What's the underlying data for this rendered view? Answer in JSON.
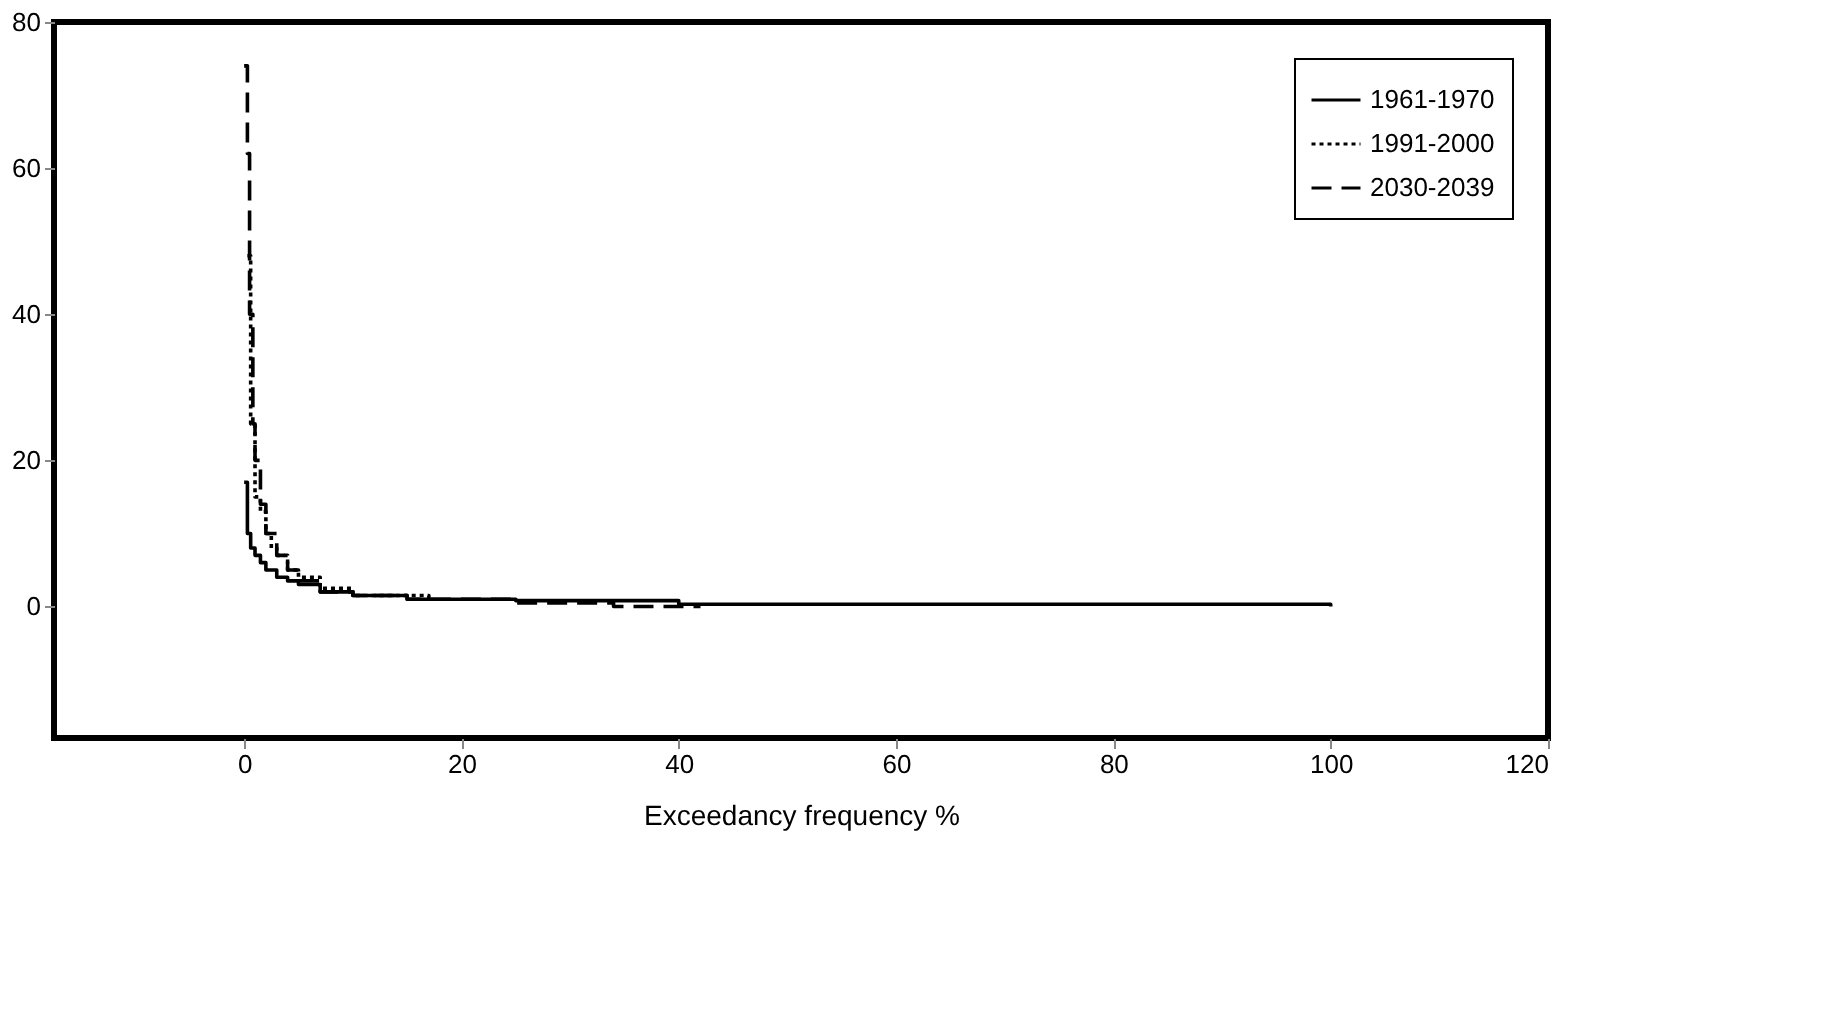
{
  "chart_data": {
    "type": "step",
    "xlabel": "Exceedancy frequency %",
    "xlim": [
      -17.5,
      120
    ],
    "xticks": [
      0,
      20,
      40,
      60,
      80,
      100,
      120
    ],
    "ylim": [
      -18,
      80
    ],
    "yticks": [
      0,
      20,
      40,
      60,
      80
    ],
    "grid": false,
    "legend": "top right",
    "series": [
      {
        "name": "1961-1970",
        "color": "#000000",
        "line_style": "solid",
        "x": [
          0,
          0.3,
          0.6,
          1,
          1.5,
          2,
          3,
          4,
          5,
          7,
          10,
          15,
          25,
          40,
          100
        ],
        "values": [
          17,
          10,
          8,
          7,
          6,
          5,
          4,
          3.5,
          3,
          2,
          1.5,
          1,
          0.8,
          0.3,
          0
        ]
      },
      {
        "name": "1991-2000",
        "color": "#000000",
        "line_style": "dotted",
        "x": [
          0.3,
          0.6,
          1,
          1.5,
          2,
          2.5,
          3,
          4,
          5,
          7,
          10,
          17
        ],
        "values": [
          48,
          25,
          15,
          13,
          10,
          8,
          7,
          5,
          4,
          2.5,
          1.5,
          1
        ]
      },
      {
        "name": "2030-2039",
        "color": "#000000",
        "line_style": "dashed",
        "x": [
          0,
          0.3,
          0.5,
          0.8,
          1,
          1.5,
          2,
          3,
          4,
          5,
          7,
          10,
          15,
          25,
          34,
          42
        ],
        "values": [
          74,
          62,
          40,
          25,
          20,
          14,
          10,
          7,
          5,
          3.5,
          2,
          1.5,
          1,
          0.5,
          0,
          0
        ]
      }
    ]
  }
}
